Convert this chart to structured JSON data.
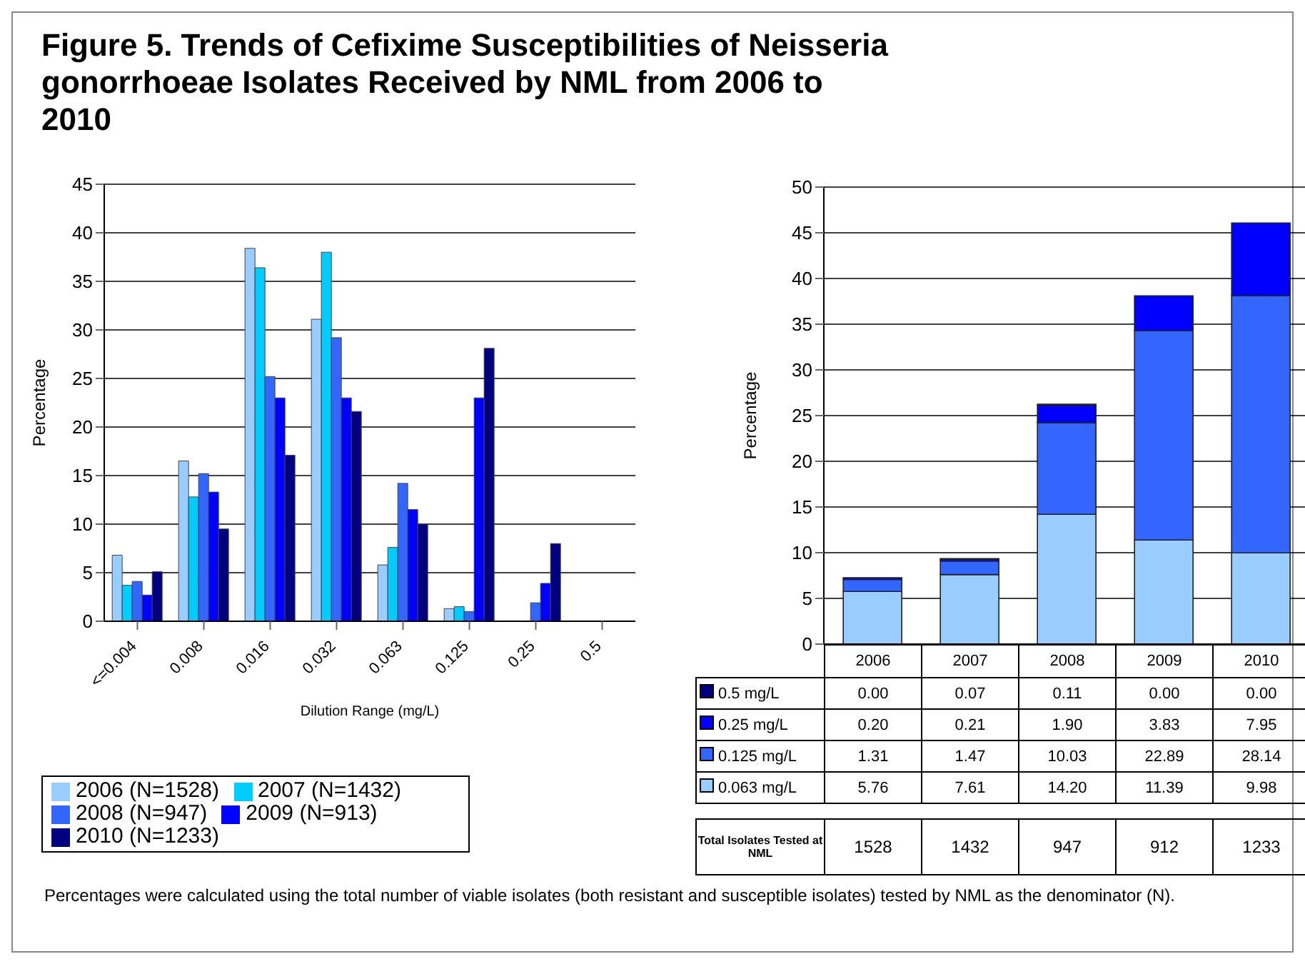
{
  "chart_data": [
    {
      "type": "bar",
      "title": "Figure 5. Trends of Cefixime Susceptibilities of Neisseria gonorrhoeae Isolates Received by NML from 2006 to 2010",
      "categories": [
        "<=0.004",
        "0.008",
        "0.016",
        "0.032",
        "0.063",
        "0.125",
        "0.25",
        "0.5"
      ],
      "series": [
        {
          "name": "2006 (N=1528)",
          "color": "#99ccff",
          "values": [
            6.8,
            16.5,
            38.4,
            31.1,
            5.8,
            1.3,
            null,
            0
          ]
        },
        {
          "name": "2007 (N=1432)",
          "color": "#00ccff",
          "values": [
            3.7,
            12.8,
            36.4,
            38.0,
            7.6,
            1.5,
            null,
            null
          ]
        },
        {
          "name": "2008 (N=947)",
          "color": "#3366ff",
          "values": [
            4.1,
            15.2,
            25.2,
            29.2,
            14.2,
            1.0,
            1.9,
            null
          ]
        },
        {
          "name": "2009 (N=913)",
          "color": "#0000ff",
          "values": [
            2.7,
            13.3,
            23.0,
            23.0,
            11.5,
            23.0,
            3.9,
            0
          ]
        },
        {
          "name": "2010 (N=1233)",
          "color": "#000080",
          "values": [
            5.1,
            9.5,
            17.1,
            21.6,
            10.0,
            28.1,
            8.0,
            0
          ]
        }
      ],
      "ylim": [
        0,
        45
      ],
      "yticks": [
        0,
        5,
        10,
        15,
        20,
        25,
        30,
        35,
        40,
        45
      ],
      "ylabel": "Percentage",
      "xlabel": "Dilution Range (mg/L)",
      "grid": "y",
      "legend": "bottom"
    },
    {
      "type": "bar",
      "stacked": true,
      "categories": [
        "2006",
        "2007",
        "2008",
        "2009",
        "2010"
      ],
      "series": [
        {
          "name": "0.063 mg/L",
          "color": "#99ccff",
          "values": [
            5.76,
            7.61,
            14.2,
            11.39,
            9.98
          ],
          "value_labels": [
            "5.76",
            "7.61",
            "14.20",
            "11.39",
            "9.98"
          ]
        },
        {
          "name": "0.125 mg/L",
          "color": "#3366ff",
          "values": [
            1.31,
            1.47,
            10.03,
            22.89,
            28.14
          ],
          "value_labels": [
            "1.31",
            "1.47",
            "10.03",
            "22.89",
            "28.14"
          ]
        },
        {
          "name": "0.25 mg/L",
          "color": "#0000ff",
          "values": [
            0.2,
            0.21,
            1.9,
            3.83,
            7.95
          ],
          "value_labels": [
            "0.20",
            "0.21",
            "1.90",
            "3.83",
            "7.95"
          ]
        },
        {
          "name": "0.5 mg/L",
          "color": "#000080",
          "values": [
            0,
            0.07,
            0.11,
            0,
            0
          ],
          "value_labels": [
            "0.00",
            "0.07",
            "0.11",
            "0.00",
            "0.00"
          ]
        }
      ],
      "ylim": [
        0,
        50
      ],
      "yticks": [
        0,
        5,
        10,
        15,
        20,
        25,
        30,
        35,
        40,
        45,
        50
      ],
      "ylabel": "Percentage",
      "grid": "y",
      "legend": "bottom",
      "annotations": [
        "Total Isolates Tested at NML",
        "1528",
        "1432",
        "947",
        "912",
        "1233",
        "Percentages were calculated using the total number of viable isolates (both resistant and susceptible isolates) tested by NML as the denominator (N)."
      ]
    }
  ]
}
